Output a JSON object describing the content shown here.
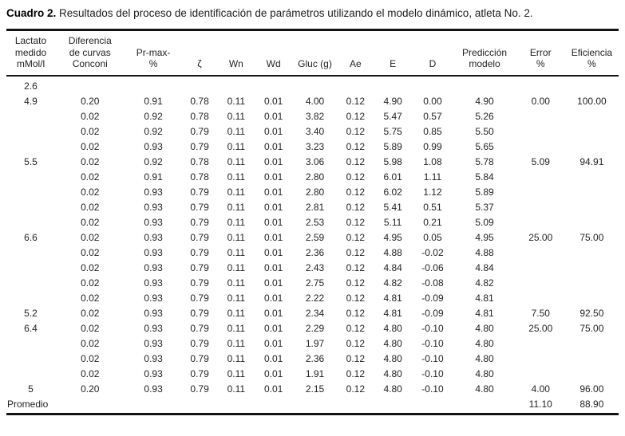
{
  "title": {
    "label": "Cuadro 2.",
    "sentence": " Resultados del proceso de identificación de parámetros utilizando el modelo dinámico, atleta No. 2."
  },
  "table": {
    "columns": [
      "Lactato\nmedido\nmMol/l",
      "Diferencia\nde curvas\nConconi",
      "Pr-max-\n%",
      "ζ",
      "Wn",
      "Wd",
      "Gluc (g)",
      "Ae",
      "E",
      "D",
      "Predicción\nmodelo",
      "Error\n%",
      "Eficiencia\n%"
    ],
    "rows": [
      [
        "2.6",
        "",
        "",
        "",
        "",
        "",
        "",
        "",
        "",
        "",
        "",
        "",
        ""
      ],
      [
        "4.9",
        "0.20",
        "0.91",
        "0.78",
        "0.11",
        "0.01",
        "4.00",
        "0.12",
        "4.90",
        "0.00",
        "4.90",
        "0.00",
        "100.00"
      ],
      [
        "",
        "0.02",
        "0.92",
        "0.78",
        "0.11",
        "0.01",
        "3.82",
        "0.12",
        "5.47",
        "0.57",
        "5.26",
        "",
        ""
      ],
      [
        "",
        "0.02",
        "0.92",
        "0.79",
        "0.11",
        "0.01",
        "3.40",
        "0.12",
        "5.75",
        "0.85",
        "5.50",
        "",
        ""
      ],
      [
        "",
        "0.02",
        "0.93",
        "0.79",
        "0.11",
        "0.01",
        "3.23",
        "0.12",
        "5.89",
        "0.99",
        "5.65",
        "",
        ""
      ],
      [
        "5.5",
        "0.02",
        "0.92",
        "0.78",
        "0.11",
        "0.01",
        "3.06",
        "0.12",
        "5.98",
        "1.08",
        "5.78",
        "5.09",
        "94.91"
      ],
      [
        "",
        "0.02",
        "0.91",
        "0.78",
        "0.11",
        "0.01",
        "2.80",
        "0.12",
        "6.01",
        "1.11",
        "5.84",
        "",
        ""
      ],
      [
        "",
        "0.02",
        "0.93",
        "0.79",
        "0.11",
        "0.01",
        "2.80",
        "0.12",
        "6.02",
        "1.12",
        "5.89",
        "",
        ""
      ],
      [
        "",
        "0.02",
        "0.93",
        "0.79",
        "0.11",
        "0.01",
        "2.81",
        "0.12",
        "5.41",
        "0.51",
        "5.37",
        "",
        ""
      ],
      [
        "",
        "0.02",
        "0.93",
        "0.79",
        "0.11",
        "0.01",
        "2.53",
        "0.12",
        "5.11",
        "0.21",
        "5.09",
        "",
        ""
      ],
      [
        "6.6",
        "0.02",
        "0.93",
        "0.79",
        "0.11",
        "0.01",
        "2.59",
        "0.12",
        "4.95",
        "0.05",
        "4.95",
        "25.00",
        "75.00"
      ],
      [
        "",
        "0.02",
        "0.93",
        "0.79",
        "0.11",
        "0.01",
        "2.36",
        "0.12",
        "4.88",
        "-0.02",
        "4.88",
        "",
        ""
      ],
      [
        "",
        "0.02",
        "0.93",
        "0.79",
        "0.11",
        "0.01",
        "2.43",
        "0.12",
        "4.84",
        "-0.06",
        "4.84",
        "",
        ""
      ],
      [
        "",
        "0.02",
        "0.93",
        "0.79",
        "0.11",
        "0.01",
        "2.75",
        "0.12",
        "4.82",
        "-0.08",
        "4.82",
        "",
        ""
      ],
      [
        "",
        "0.02",
        "0.93",
        "0.79",
        "0.11",
        "0.01",
        "2.22",
        "0.12",
        "4.81",
        "-0.09",
        "4.81",
        "",
        ""
      ],
      [
        "5.2",
        "0.02",
        "0.93",
        "0.79",
        "0.11",
        "0.01",
        "2.34",
        "0.12",
        "4.81",
        "-0.09",
        "4.81",
        "7.50",
        "92.50"
      ],
      [
        "6.4",
        "0.02",
        "0.93",
        "0.79",
        "0.11",
        "0.01",
        "2.29",
        "0.12",
        "4.80",
        "-0.10",
        "4.80",
        "25.00",
        "75.00"
      ],
      [
        "",
        "0.02",
        "0.93",
        "0.79",
        "0.11",
        "0.01",
        "1.97",
        "0.12",
        "4.80",
        "-0.10",
        "4.80",
        "",
        ""
      ],
      [
        "",
        "0.02",
        "0.93",
        "0.79",
        "0.11",
        "0.01",
        "2.36",
        "0.12",
        "4.80",
        "-0.10",
        "4.80",
        "",
        ""
      ],
      [
        "",
        "0.02",
        "0.93",
        "0.79",
        "0.11",
        "0.01",
        "1.91",
        "0.12",
        "4.80",
        "-0.10",
        "4.80",
        "",
        ""
      ],
      [
        "5",
        "0.20",
        "0.93",
        "0.79",
        "0.11",
        "0.01",
        "2.15",
        "0.12",
        "4.80",
        "-0.10",
        "4.80",
        "4.00",
        "96.00"
      ],
      [
        "Promedio",
        "",
        "",
        "",
        "",
        "",
        "",
        "",
        "",
        "",
        "",
        "11.10",
        "88.90"
      ]
    ],
    "left_aligned_row_labels": [
      "Promedio"
    ]
  },
  "colors": {
    "text": "#232323",
    "rule": "#141414",
    "background": "#ffffff"
  }
}
